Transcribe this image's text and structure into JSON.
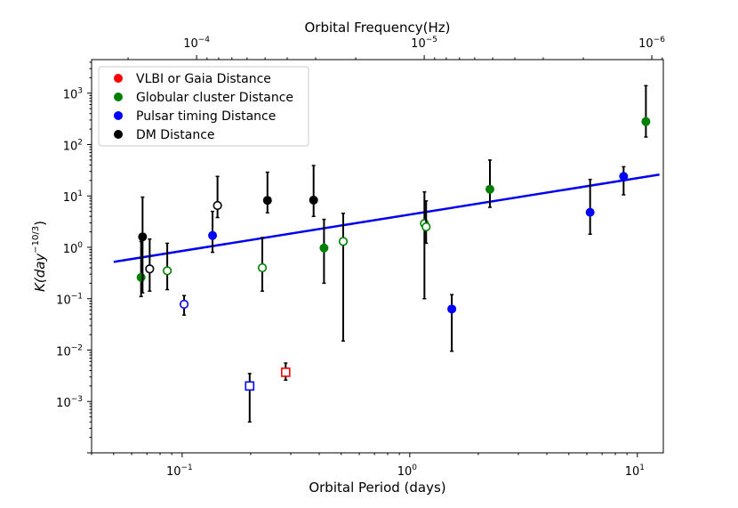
{
  "chart_data": {
    "type": "scatter",
    "xlabel": "Orbital Period (days)",
    "ylabel": "K(day",
    "ylabel_sup": "−10/3",
    "ylabel_close": ")",
    "top_xlabel": "Orbital Frequency(Hz)",
    "xscale": "log",
    "yscale": "log",
    "xlim": [
      0.04,
      13.0
    ],
    "ylim": [
      0.0001,
      4500
    ],
    "top_axis_note": "frequency = 1/(period * 86400)",
    "x_ticks": [
      {
        "value": 0.1,
        "base": "10",
        "exp": "−1"
      },
      {
        "value": 1,
        "base": "10",
        "exp": "0"
      },
      {
        "value": 10,
        "base": "10",
        "exp": "1"
      }
    ],
    "y_ticks": [
      {
        "value": 0.001,
        "base": "10",
        "exp": "−3"
      },
      {
        "value": 0.01,
        "base": "10",
        "exp": "−2"
      },
      {
        "value": 0.1,
        "base": "10",
        "exp": "−1"
      },
      {
        "value": 1,
        "base": "10",
        "exp": "0"
      },
      {
        "value": 10,
        "base": "10",
        "exp": "1"
      },
      {
        "value": 100,
        "base": "10",
        "exp": "2"
      },
      {
        "value": 1000,
        "base": "10",
        "exp": "3"
      }
    ],
    "top_ticks": [
      {
        "value": 0.0001,
        "base": "10",
        "exp": "−4"
      },
      {
        "value": 1e-05,
        "base": "10",
        "exp": "−5"
      },
      {
        "value": 1e-06,
        "base": "10",
        "exp": "−6"
      }
    ],
    "fit_line": {
      "x": [
        0.05,
        12.5
      ],
      "y": [
        0.52,
        26.0
      ],
      "color": "#0000ee"
    },
    "legend": {
      "position": "top-left",
      "entries": [
        {
          "label": "VLBI or Gaia Distance",
          "color": "#ff0000"
        },
        {
          "label": "Globular cluster Distance",
          "color": "#008000"
        },
        {
          "label": "Pulsar timing Distance",
          "color": "#0000ff"
        },
        {
          "label": "DM Distance",
          "color": "#000000"
        }
      ]
    },
    "series": [
      {
        "name": "Globular cluster Distance",
        "color": "#008000",
        "points": [
          {
            "x": 0.066,
            "y": 0.26,
            "lo": 0.11,
            "hi": 1.3,
            "marker": "filled"
          },
          {
            "x": 0.086,
            "y": 0.35,
            "lo": 0.15,
            "hi": 1.2,
            "marker": "open"
          },
          {
            "x": 0.225,
            "y": 0.4,
            "lo": 0.14,
            "hi": 1.55,
            "marker": "open"
          },
          {
            "x": 0.42,
            "y": 0.97,
            "lo": 0.2,
            "hi": 3.5,
            "marker": "filled"
          },
          {
            "x": 0.51,
            "y": 1.3,
            "lo": 0.015,
            "hi": 4.6,
            "marker": "open"
          },
          {
            "x": 1.16,
            "y": 2.9,
            "lo": 0.1,
            "hi": 12.0,
            "marker": "open"
          },
          {
            "x": 1.18,
            "y": 2.5,
            "lo": 1.2,
            "hi": 8.0,
            "marker": "open"
          },
          {
            "x": 2.25,
            "y": 13.5,
            "lo": 6.0,
            "hi": 50.0,
            "marker": "filled"
          },
          {
            "x": 10.9,
            "y": 280,
            "lo": 140,
            "hi": 1400,
            "marker": "filled"
          }
        ]
      },
      {
        "name": "Pulsar timing Distance",
        "color": "#0000ff",
        "points": [
          {
            "x": 0.102,
            "y": 0.078,
            "lo": 0.048,
            "hi": 0.115,
            "marker": "open"
          },
          {
            "x": 0.136,
            "y": 1.7,
            "lo": 0.8,
            "hi": 5.0,
            "marker": "filled"
          },
          {
            "x": 0.198,
            "y": 0.002,
            "lo": 0.0004,
            "hi": 0.0035,
            "marker": "open-square"
          },
          {
            "x": 1.53,
            "y": 0.063,
            "lo": 0.0095,
            "hi": 0.12,
            "marker": "filled"
          },
          {
            "x": 6.2,
            "y": 4.8,
            "lo": 1.8,
            "hi": 21.0,
            "marker": "filled"
          },
          {
            "x": 8.7,
            "y": 24.0,
            "lo": 10.5,
            "hi": 37.0,
            "marker": "filled"
          }
        ]
      },
      {
        "name": "DM Distance",
        "color": "#000000",
        "points": [
          {
            "x": 0.067,
            "y": 1.6,
            "lo": 0.13,
            "hi": 9.5,
            "marker": "filled"
          },
          {
            "x": 0.072,
            "y": 0.38,
            "lo": 0.14,
            "hi": 1.45,
            "marker": "open"
          },
          {
            "x": 0.143,
            "y": 6.5,
            "lo": 3.8,
            "hi": 24.0,
            "marker": "open"
          },
          {
            "x": 0.237,
            "y": 8.2,
            "lo": 4.7,
            "hi": 29.0,
            "marker": "filled"
          },
          {
            "x": 0.378,
            "y": 8.3,
            "lo": 4.0,
            "hi": 39.0,
            "marker": "filled"
          }
        ]
      },
      {
        "name": "VLBI or Gaia Distance",
        "color": "#ff0000",
        "points": [
          {
            "x": 0.285,
            "y": 0.0037,
            "lo": 0.0026,
            "hi": 0.0056,
            "marker": "open-square"
          }
        ]
      }
    ]
  }
}
